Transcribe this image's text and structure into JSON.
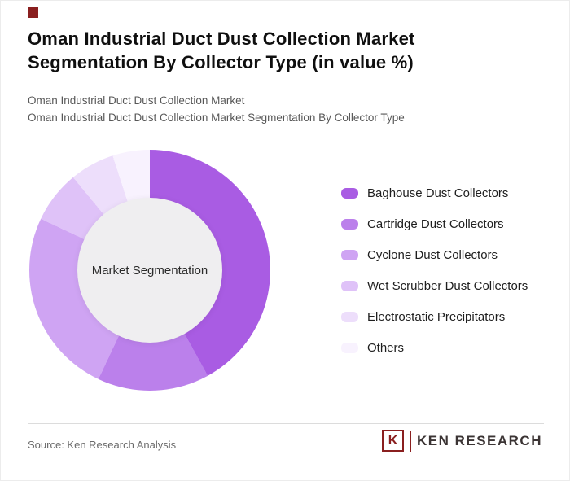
{
  "meta": {
    "accent_red": "#8A1F1F",
    "background": "#ffffff",
    "center_circle_color": "#EFEEF0",
    "logo_text_color": "#3B3434"
  },
  "header": {
    "title_line1": "Oman Industrial Duct Dust Collection Market",
    "title_line2": "Segmentation By Collector Type (in value %)",
    "subtitle_line1": "Oman Industrial Duct Dust Collection Market",
    "subtitle_line2": "Oman Industrial Duct Dust Collection Market Segmentation By Collector Type"
  },
  "chart_data": {
    "type": "pie",
    "donut": true,
    "units": "%",
    "title": "Oman Industrial Duct Dust Collection Market Segmentation By Collector Type (in value %)",
    "center_label": "Market Segmentation",
    "legend_position": "right",
    "start_angle_deg": 0,
    "direction": "clockwise",
    "segments": [
      {
        "label": "Baghouse Dust Collectors",
        "value": 42,
        "color": "#A95CE3"
      },
      {
        "label": "Cartridge Dust Collectors",
        "value": 15,
        "color": "#BB80EB"
      },
      {
        "label": "Cyclone Dust Collectors",
        "value": 25,
        "color": "#CFA4F3"
      },
      {
        "label": "Wet Scrubber Dust Collectors",
        "value": 7,
        "color": "#DFC2F8"
      },
      {
        "label": "Electrostatic Precipitators",
        "value": 6,
        "color": "#EDDEFB"
      },
      {
        "label": "Others",
        "value": 5,
        "color": "#F8F2FE"
      }
    ]
  },
  "footer": {
    "source": "Source: Ken Research Analysis",
    "logo_k": "K",
    "logo_text": "KEN RESEARCH"
  }
}
